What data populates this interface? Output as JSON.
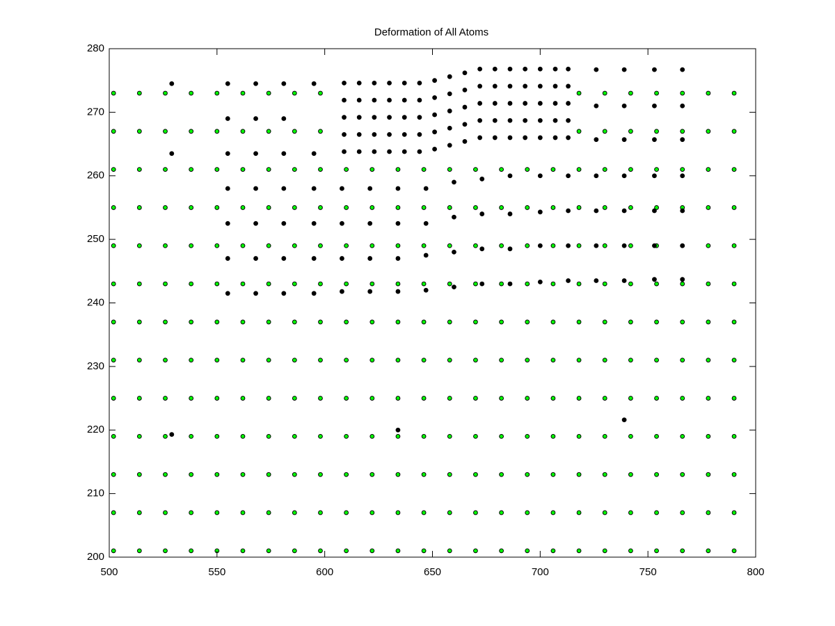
{
  "chart_data": {
    "type": "scatter",
    "title": "Deformation of All Atoms",
    "xlim": [
      500,
      800
    ],
    "xticks": [
      500,
      550,
      600,
      650,
      700,
      750,
      800
    ],
    "ylim": [
      200,
      280
    ],
    "yticks": [
      200,
      210,
      220,
      230,
      240,
      250,
      260,
      270,
      280
    ],
    "grid": false,
    "series": [
      {
        "color": "#00ff00",
        "x": [
          502,
          514,
          526,
          538,
          550,
          562,
          574,
          586,
          598,
          610,
          622,
          634,
          646,
          658,
          670,
          682,
          694,
          706,
          718,
          730,
          742,
          754,
          766,
          778,
          790,
          502,
          514,
          526,
          538,
          550,
          562,
          574,
          586,
          598,
          610,
          622,
          634,
          646,
          658,
          670,
          682,
          694,
          706,
          718,
          730,
          742,
          754,
          766,
          778,
          790,
          502,
          514,
          526,
          538,
          550,
          562,
          574,
          586,
          598,
          610,
          622,
          634,
          646,
          658,
          670,
          682,
          694,
          706,
          718,
          730,
          742,
          754,
          766,
          778,
          790,
          502,
          514,
          526,
          538,
          550,
          562,
          574,
          586,
          598,
          610,
          622,
          634,
          646,
          658,
          670,
          682,
          694,
          706,
          718,
          730,
          742,
          754,
          766,
          778,
          790,
          502,
          514,
          526,
          538,
          550,
          562,
          574,
          586,
          598,
          610,
          622,
          634,
          646,
          658,
          670,
          682,
          694,
          706,
          718,
          730,
          742,
          754,
          766,
          778,
          790,
          502,
          514,
          526,
          538,
          550,
          562,
          574,
          586,
          598,
          610,
          622,
          634,
          646,
          658,
          670,
          682,
          694,
          706,
          718,
          730,
          742,
          754,
          766,
          778,
          790,
          502,
          514,
          526,
          538,
          550,
          562,
          574,
          586,
          598,
          610,
          622,
          634,
          646,
          658,
          670,
          682,
          694,
          706,
          718,
          730,
          742,
          754,
          766,
          778,
          790,
          502,
          514,
          526,
          538,
          550,
          562,
          574,
          586,
          598,
          610,
          622,
          634,
          646,
          658,
          670,
          682,
          694,
          706,
          718,
          730,
          742,
          754,
          766,
          778,
          790,
          502,
          514,
          526,
          538,
          550,
          562,
          574,
          586,
          598,
          610,
          622,
          634,
          646,
          658,
          670,
          682,
          694,
          706,
          718,
          730,
          742,
          754,
          766,
          778,
          790,
          502,
          514,
          526,
          538,
          550,
          562,
          574,
          586,
          598,
          610,
          622,
          634,
          646,
          658,
          670,
          682,
          694,
          706,
          718,
          730,
          742,
          754,
          766,
          778,
          790,
          502,
          514,
          526,
          538,
          550,
          562,
          574,
          586,
          598,
          610,
          622,
          634,
          646,
          658,
          670,
          682,
          694,
          706,
          718,
          730,
          742,
          754,
          766,
          778,
          790,
          502,
          514,
          526,
          538,
          550,
          562,
          574,
          586,
          598,
          718,
          730,
          742,
          754,
          766,
          778,
          790,
          502,
          514,
          526,
          538,
          550,
          562,
          574,
          586,
          598,
          718,
          730,
          742,
          754,
          766,
          778,
          790
        ],
        "values": [
          201,
          201,
          201,
          201,
          201,
          201,
          201,
          201,
          201,
          201,
          201,
          201,
          201,
          201,
          201,
          201,
          201,
          201,
          201,
          201,
          201,
          201,
          201,
          201,
          201,
          207,
          207,
          207,
          207,
          207,
          207,
          207,
          207,
          207,
          207,
          207,
          207,
          207,
          207,
          207,
          207,
          207,
          207,
          207,
          207,
          207,
          207,
          207,
          207,
          207,
          213,
          213,
          213,
          213,
          213,
          213,
          213,
          213,
          213,
          213,
          213,
          213,
          213,
          213,
          213,
          213,
          213,
          213,
          213,
          213,
          213,
          213,
          213,
          213,
          213,
          219,
          219,
          219,
          219,
          219,
          219,
          219,
          219,
          219,
          219,
          219,
          219,
          219,
          219,
          219,
          219,
          219,
          219,
          219,
          219,
          219,
          219,
          219,
          219,
          219,
          225,
          225,
          225,
          225,
          225,
          225,
          225,
          225,
          225,
          225,
          225,
          225,
          225,
          225,
          225,
          225,
          225,
          225,
          225,
          225,
          225,
          225,
          225,
          225,
          225,
          231,
          231,
          231,
          231,
          231,
          231,
          231,
          231,
          231,
          231,
          231,
          231,
          231,
          231,
          231,
          231,
          231,
          231,
          231,
          231,
          231,
          231,
          231,
          231,
          231,
          237,
          237,
          237,
          237,
          237,
          237,
          237,
          237,
          237,
          237,
          237,
          237,
          237,
          237,
          237,
          237,
          237,
          237,
          237,
          237,
          237,
          237,
          237,
          237,
          237,
          243,
          243,
          243,
          243,
          243,
          243,
          243,
          243,
          243,
          243,
          243,
          243,
          243,
          243,
          243,
          243,
          243,
          243,
          243,
          243,
          243,
          243,
          243,
          243,
          243,
          249,
          249,
          249,
          249,
          249,
          249,
          249,
          249,
          249,
          249,
          249,
          249,
          249,
          249,
          249,
          249,
          249,
          249,
          249,
          249,
          249,
          249,
          249,
          249,
          249,
          255,
          255,
          255,
          255,
          255,
          255,
          255,
          255,
          255,
          255,
          255,
          255,
          255,
          255,
          255,
          255,
          255,
          255,
          255,
          255,
          255,
          255,
          255,
          255,
          255,
          261,
          261,
          261,
          261,
          261,
          261,
          261,
          261,
          261,
          261,
          261,
          261,
          261,
          261,
          261,
          261,
          261,
          261,
          261,
          261,
          261,
          261,
          261,
          261,
          261,
          267,
          267,
          267,
          267,
          267,
          267,
          267,
          267,
          267,
          267,
          267,
          267,
          267,
          267,
          267,
          267,
          273,
          273,
          273,
          273,
          273,
          273,
          273,
          273,
          273,
          273,
          273,
          273,
          273,
          273,
          273,
          273
        ]
      },
      {
        "color": "#000000",
        "x": [
          529,
          555,
          568,
          581,
          595,
          555,
          568,
          581,
          529,
          555,
          568,
          581,
          595,
          555,
          568,
          581,
          595,
          608,
          621,
          634,
          647,
          660,
          673,
          686,
          700,
          713,
          726,
          739,
          753,
          766,
          555,
          568,
          581,
          595,
          608,
          621,
          634,
          647,
          660,
          673,
          686,
          700,
          713,
          726,
          739,
          753,
          766,
          555,
          568,
          581,
          595,
          608,
          621,
          634,
          647,
          660,
          673,
          686,
          700,
          713,
          726,
          739,
          753,
          766,
          555,
          568,
          581,
          595,
          608,
          621,
          634,
          647,
          660,
          673,
          686,
          700,
          713,
          726,
          739,
          753,
          766,
          726,
          739,
          753,
          766,
          726,
          739,
          753,
          766,
          726,
          739,
          753,
          766,
          529,
          634,
          739
        ],
        "values": [
          274.5,
          274.5,
          274.5,
          274.5,
          274.5,
          269,
          269,
          269,
          263.5,
          263.5,
          263.5,
          263.5,
          263.5,
          258,
          258,
          258,
          258,
          258,
          258,
          258,
          258,
          259,
          259.5,
          260,
          260,
          260,
          260,
          260,
          260,
          260,
          252.5,
          252.5,
          252.5,
          252.5,
          252.5,
          252.5,
          252.5,
          252.5,
          253.5,
          254,
          254,
          254.3,
          254.5,
          254.5,
          254.5,
          254.5,
          254.5,
          247,
          247,
          247,
          247,
          247,
          247,
          247,
          247.5,
          248,
          248.5,
          248.5,
          249,
          249,
          249,
          249,
          249,
          249,
          241.5,
          241.5,
          241.5,
          241.5,
          241.8,
          241.8,
          241.8,
          242,
          242.5,
          243,
          243,
          243.3,
          243.5,
          243.5,
          243.5,
          243.7,
          243.7,
          276.7,
          276.7,
          276.7,
          276.7,
          271,
          271,
          271,
          271,
          265.7,
          265.7,
          265.7,
          265.7,
          219.3,
          220,
          221.6
        ]
      },
      {
        "color": "#000000",
        "x": [
          609,
          609,
          609,
          609,
          609,
          616,
          616,
          616,
          616,
          616,
          623,
          623,
          623,
          623,
          623,
          630,
          630,
          630,
          630,
          630,
          637,
          637,
          637,
          637,
          637,
          644,
          644,
          644,
          644,
          644,
          651,
          651,
          651,
          651,
          651,
          658,
          658,
          658,
          658,
          658,
          665,
          665,
          665,
          665,
          665,
          672,
          672,
          672,
          672,
          672,
          679,
          679,
          679,
          679,
          679,
          686,
          686,
          686,
          686,
          686,
          693,
          693,
          693,
          693,
          693,
          700,
          700,
          700,
          700,
          700,
          707,
          707,
          707,
          707,
          707,
          713,
          713,
          713,
          713,
          713
        ],
        "values": [
          263.8,
          266.5,
          269.2,
          271.9,
          274.6,
          263.8,
          266.5,
          269.2,
          271.9,
          274.6,
          263.8,
          266.5,
          269.2,
          271.9,
          274.6,
          263.8,
          266.5,
          269.2,
          271.9,
          274.6,
          263.8,
          266.5,
          269.2,
          271.9,
          274.6,
          263.8,
          266.5,
          269.2,
          271.9,
          274.6,
          264.2,
          266.9,
          269.6,
          272.3,
          275,
          264.8,
          267.5,
          270.2,
          272.9,
          275.6,
          265.4,
          268.1,
          270.8,
          273.5,
          276.2,
          266,
          268.7,
          271.4,
          274.1,
          276.8,
          266,
          268.7,
          271.4,
          274.1,
          276.8,
          266,
          268.7,
          271.4,
          274.1,
          276.8,
          266,
          268.7,
          271.4,
          274.1,
          276.8,
          266,
          268.7,
          271.4,
          274.1,
          276.8,
          266,
          268.7,
          271.4,
          274.1,
          276.8,
          266,
          268.7,
          271.4,
          274.1,
          276.8
        ]
      }
    ]
  }
}
